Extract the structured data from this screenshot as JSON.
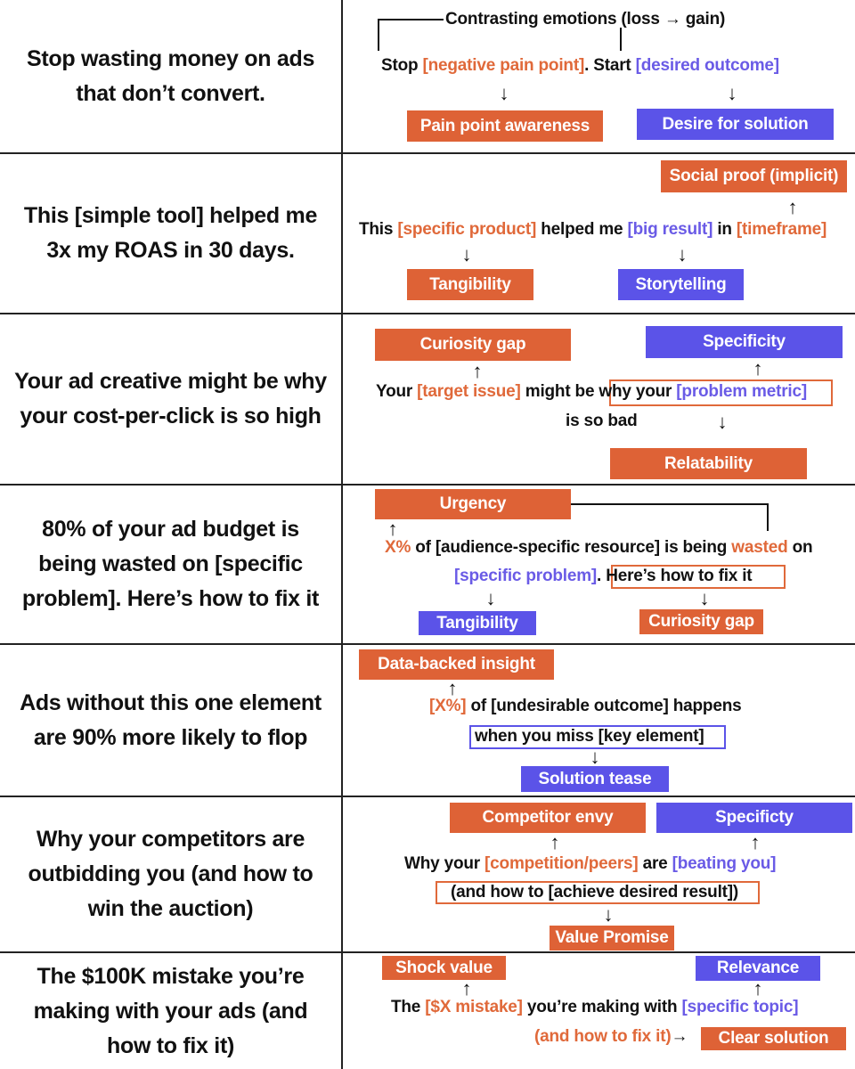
{
  "rows": [
    {
      "headline": "Stop wasting money on ads that don’t convert.",
      "note": "Contrasting emotions (loss → gain)",
      "formula": {
        "p1": "Stop ",
        "p2": "[negative pain point]",
        "p3": ". Start ",
        "p4": "[desired outcome]"
      },
      "tags": {
        "a": "Pain point awareness",
        "b": "Desire for solution"
      }
    },
    {
      "headline": "This [simple tool] helped me 3x my ROAS in 30 days.",
      "formula": {
        "p1": "This ",
        "p2": "[specific product]",
        "p3": " helped me ",
        "p4": "[big result]",
        "p5": " in ",
        "p6": "[timeframe]"
      },
      "tags": {
        "a": "Social proof (implicit)",
        "b": "Tangibility",
        "c": "Storytelling"
      }
    },
    {
      "headline": "Your ad creative might be why your cost-per-click is so high",
      "formula": {
        "p1": "Your ",
        "p2": "[target issue]",
        "p3": " might be ",
        "p4": "why your ",
        "p5": "[problem metric]",
        "line2": "is so bad"
      },
      "tags": {
        "a": "Curiosity gap",
        "b": "Specificity",
        "c": "Relatability"
      }
    },
    {
      "headline": "80% of your ad budget is being wasted on [specific problem]. Here’s how to fix it",
      "formula": {
        "p1": "X%",
        "p2": " of [audience-specific resource] is being ",
        "p3": "wasted",
        "p4": " on",
        "p5": "[specific problem]",
        "p6": ". ",
        "p7": "Here’s how to fix it"
      },
      "tags": {
        "a": "Urgency",
        "b": "Tangibility",
        "c": "Curiosity gap"
      }
    },
    {
      "headline": "Ads without this one element are 90% more likely to flop",
      "formula": {
        "p1": "[X%]",
        "p2": " of [undesirable outcome] happens",
        "line2": "when you miss [key element]"
      },
      "tags": {
        "a": "Data-backed insight",
        "b": "Solution tease"
      }
    },
    {
      "headline": "Why your competitors are outbidding you (and how to win the auction)",
      "formula": {
        "p1": "Why your ",
        "p2": "[competition/peers]",
        "p3": " are ",
        "p4": "[beating you]",
        "line2": "(and how to [achieve desired result])"
      },
      "tags": {
        "a": "Competitor envy",
        "b": "Specificty",
        "c": "Value Promise"
      }
    },
    {
      "headline": "The $100K mistake you’re making with your ads (and how to fix it)",
      "formula": {
        "p1": "The ",
        "p2": "[$X mistake]",
        "p3": " you’re making with ",
        "p4": "[specific topic]",
        "line2": "(and how to fix it)",
        "arrow": "→"
      },
      "tags": {
        "a": "Shock value",
        "b": "Relevance",
        "c": "Clear solution"
      }
    }
  ],
  "arrows": {
    "down": "↓",
    "up": "↑"
  },
  "colors": {
    "orange": "#de6236",
    "blue": "#5b53e8",
    "text": "#111111",
    "divider": "#222222"
  }
}
